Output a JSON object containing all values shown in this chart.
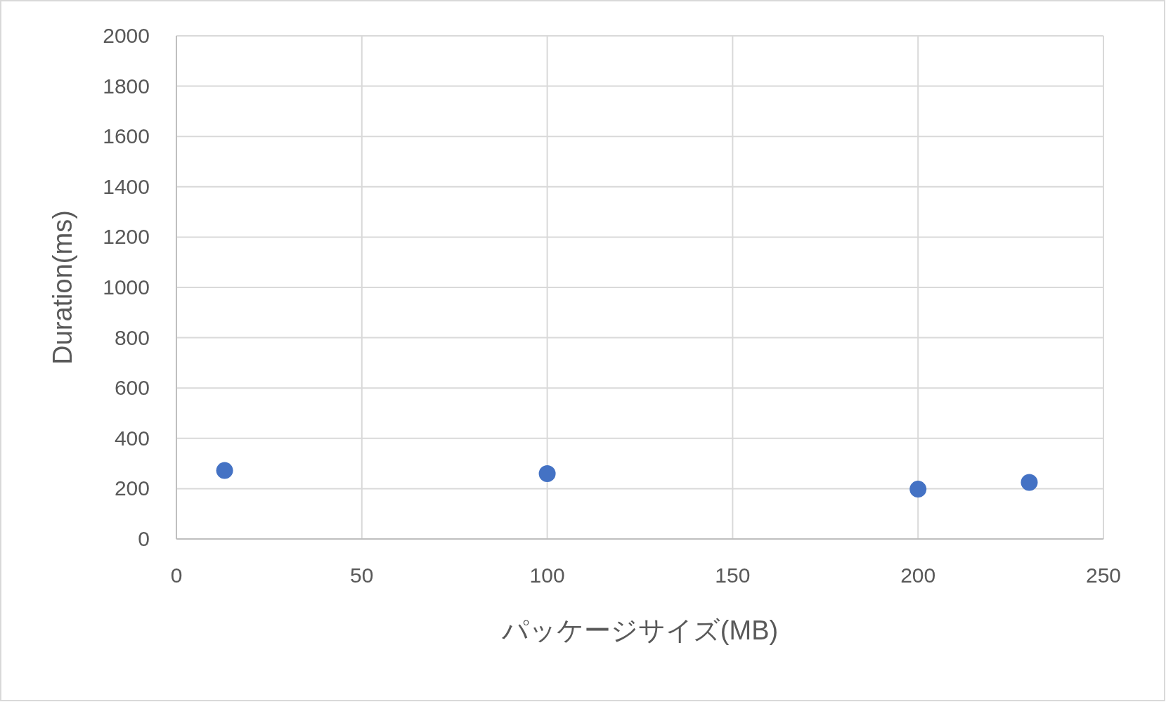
{
  "chart_data": {
    "type": "scatter",
    "xlabel": "パッケージサイズ(MB)",
    "ylabel": "Duration(ms)",
    "x": [
      13,
      100,
      200,
      230
    ],
    "values": [
      272,
      260,
      198,
      225
    ],
    "color": "#4472c4",
    "marker": "circle",
    "xlim": [
      0,
      250
    ],
    "ylim": [
      0,
      2000
    ],
    "xticks": [
      0,
      50,
      100,
      150,
      200,
      250
    ],
    "yticks": [
      0,
      200,
      400,
      600,
      800,
      1000,
      1200,
      1400,
      1600,
      1800,
      2000
    ],
    "grid": true
  }
}
